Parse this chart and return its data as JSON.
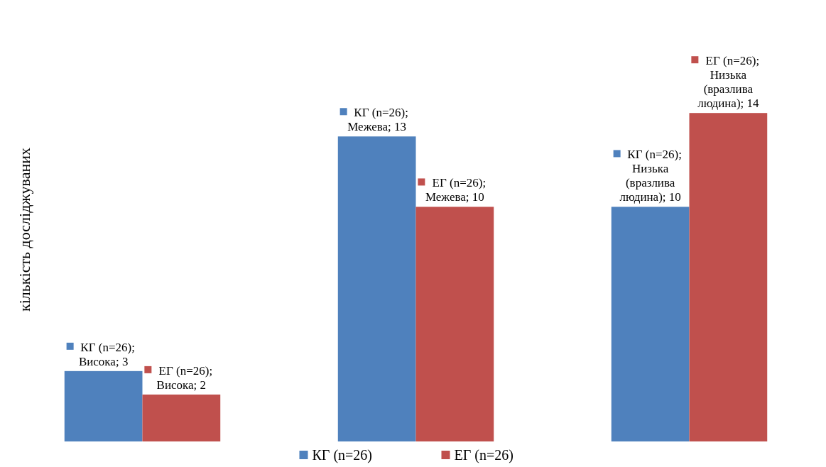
{
  "chart_data": {
    "type": "bar",
    "ylabel": "кількість досліджуваних",
    "categories": [
      null,
      null,
      null
    ],
    "series": [
      {
        "name": "КГ (n=26)",
        "color": "#4f81bd",
        "values": [
          3,
          13,
          10
        ],
        "value_labels": [
          "КГ (n=26); Висока; 3",
          "КГ (n=26); Межева; 13",
          "КГ (n=26); Низька (вразлива людина); 10"
        ]
      },
      {
        "name": "ЕГ (n=26)",
        "color": "#c0504d",
        "values": [
          2,
          10,
          14
        ],
        "value_labels": [
          "ЕГ (n=26); Висока; 2",
          "ЕГ (n=26); Межева; 10",
          "ЕГ (n=26); Низька (вразлива людина); 14"
        ]
      }
    ],
    "legend": "bottom"
  }
}
